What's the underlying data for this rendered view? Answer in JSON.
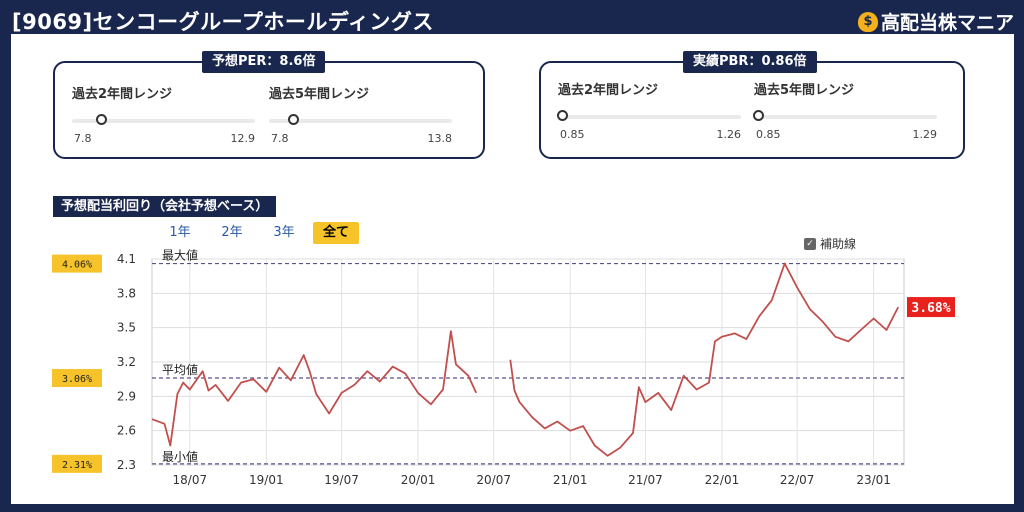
{
  "header": {
    "title": "[9069]センコーグループホールディングス",
    "brand": "高配当株マニア",
    "brand_icon": "money-bag-icon"
  },
  "per_box": {
    "tab": "予想PER：8.6倍",
    "ranges": [
      {
        "label": "過去2年間レンジ",
        "min": "7.8",
        "max": "12.9",
        "position": 0.16
      },
      {
        "label": "過去5年間レンジ",
        "min": "7.8",
        "max": "13.8",
        "position": 0.13
      }
    ]
  },
  "pbr_box": {
    "tab": "実績PBR：0.86倍",
    "ranges": [
      {
        "label": "過去2年間レンジ",
        "min": "0.85",
        "max": "1.26",
        "position": 0.02
      },
      {
        "label": "過去5年間レンジ",
        "min": "0.85",
        "max": "1.29",
        "position": 0.02
      }
    ]
  },
  "yield_section": {
    "title": "予想配当利回り（会社予想ベース）",
    "periods": [
      "1年",
      "2年",
      "3年",
      "全て"
    ],
    "selected_period": "全て",
    "aux_lines_label": "補助線",
    "aux_lines_checked": true
  },
  "colors": {
    "navy": "#19264d",
    "line": "#c0504d",
    "badge": "#f6c32a",
    "current_badge": "#e8211d",
    "ref_line": "#5c4f8f"
  },
  "chart_data": {
    "type": "line",
    "title": "",
    "xlabel": "",
    "ylabel": "",
    "ylim": [
      2.3,
      4.1
    ],
    "yticks": [
      "2.3",
      "2.6",
      "2.9",
      "3.2",
      "3.5",
      "3.8",
      "4.1"
    ],
    "xticks": [
      {
        "label": "18/07",
        "x": "2018-07"
      },
      {
        "label": "19/01",
        "x": "2019-01"
      },
      {
        "label": "19/07",
        "x": "2019-07"
      },
      {
        "label": "20/01",
        "x": "2020-01"
      },
      {
        "label": "20/07",
        "x": "2020-07"
      },
      {
        "label": "21/01",
        "x": "2021-01"
      },
      {
        "label": "21/07",
        "x": "2021-07"
      },
      {
        "label": "22/01",
        "x": "2022-01"
      },
      {
        "label": "22/07",
        "x": "2022-07"
      },
      {
        "label": "23/01",
        "x": "2023-01"
      }
    ],
    "grid": true,
    "reference_lines": [
      {
        "name": "最大値",
        "value": 4.06,
        "badge": "4.06%"
      },
      {
        "name": "平均値",
        "value": 3.06,
        "badge": "3.06%"
      },
      {
        "name": "最小値",
        "value": 2.31,
        "badge": "2.31%"
      }
    ],
    "current_value_label": "3.68%",
    "series": [
      {
        "segments": [
          [
            [
              "2018-04",
              2.7
            ],
            [
              "2018-05",
              2.66
            ],
            [
              "2018-05-15",
              2.47
            ],
            [
              "2018-06",
              2.92
            ],
            [
              "2018-06-15",
              3.02
            ],
            [
              "2018-07",
              2.96
            ],
            [
              "2018-08",
              3.12
            ],
            [
              "2018-08-15",
              2.95
            ],
            [
              "2018-09",
              3.0
            ],
            [
              "2018-10",
              2.86
            ],
            [
              "2018-11",
              3.02
            ],
            [
              "2018-12",
              3.05
            ],
            [
              "2019-01",
              2.94
            ],
            [
              "2019-02",
              3.15
            ],
            [
              "2019-03",
              3.04
            ],
            [
              "2019-04",
              3.26
            ],
            [
              "2019-04-15",
              3.12
            ],
            [
              "2019-05",
              2.92
            ],
            [
              "2019-06",
              2.75
            ],
            [
              "2019-07",
              2.93
            ],
            [
              "2019-08",
              3.0
            ],
            [
              "2019-09",
              3.12
            ],
            [
              "2019-10",
              3.03
            ],
            [
              "2019-11",
              3.16
            ],
            [
              "2019-12",
              3.1
            ],
            [
              "2020-01",
              2.93
            ],
            [
              "2020-02",
              2.83
            ],
            [
              "2020-03",
              2.96
            ],
            [
              "2020-03-20",
              3.47
            ],
            [
              "2020-04",
              3.18
            ],
            [
              "2020-05",
              3.08
            ],
            [
              "2020-05-20",
              2.93
            ]
          ],
          [
            [
              "2020-08-10",
              3.22
            ],
            [
              "2020-08-20",
              2.95
            ],
            [
              "2020-09",
              2.85
            ],
            [
              "2020-10",
              2.72
            ],
            [
              "2020-11",
              2.62
            ],
            [
              "2020-12",
              2.68
            ],
            [
              "2021-01",
              2.6
            ],
            [
              "2021-02",
              2.64
            ],
            [
              "2021-03",
              2.47
            ],
            [
              "2021-04",
              2.38
            ],
            [
              "2021-05",
              2.45
            ],
            [
              "2021-06",
              2.58
            ],
            [
              "2021-06-15",
              2.98
            ],
            [
              "2021-07",
              2.85
            ],
            [
              "2021-08",
              2.93
            ],
            [
              "2021-09",
              2.78
            ],
            [
              "2021-10",
              3.08
            ],
            [
              "2021-11",
              2.96
            ],
            [
              "2021-12",
              3.02
            ],
            [
              "2021-12-15",
              3.38
            ],
            [
              "2022-01",
              3.42
            ],
            [
              "2022-02",
              3.45
            ],
            [
              "2022-03",
              3.4
            ],
            [
              "2022-04",
              3.6
            ],
            [
              "2022-05",
              3.74
            ],
            [
              "2022-06",
              4.06
            ],
            [
              "2022-07",
              3.85
            ],
            [
              "2022-08",
              3.66
            ],
            [
              "2022-09",
              3.55
            ],
            [
              "2022-10",
              3.42
            ],
            [
              "2022-11",
              3.38
            ],
            [
              "2022-12",
              3.48
            ],
            [
              "2023-01",
              3.58
            ],
            [
              "2023-02",
              3.48
            ],
            [
              "2023-03",
              3.68
            ]
          ]
        ]
      }
    ]
  }
}
